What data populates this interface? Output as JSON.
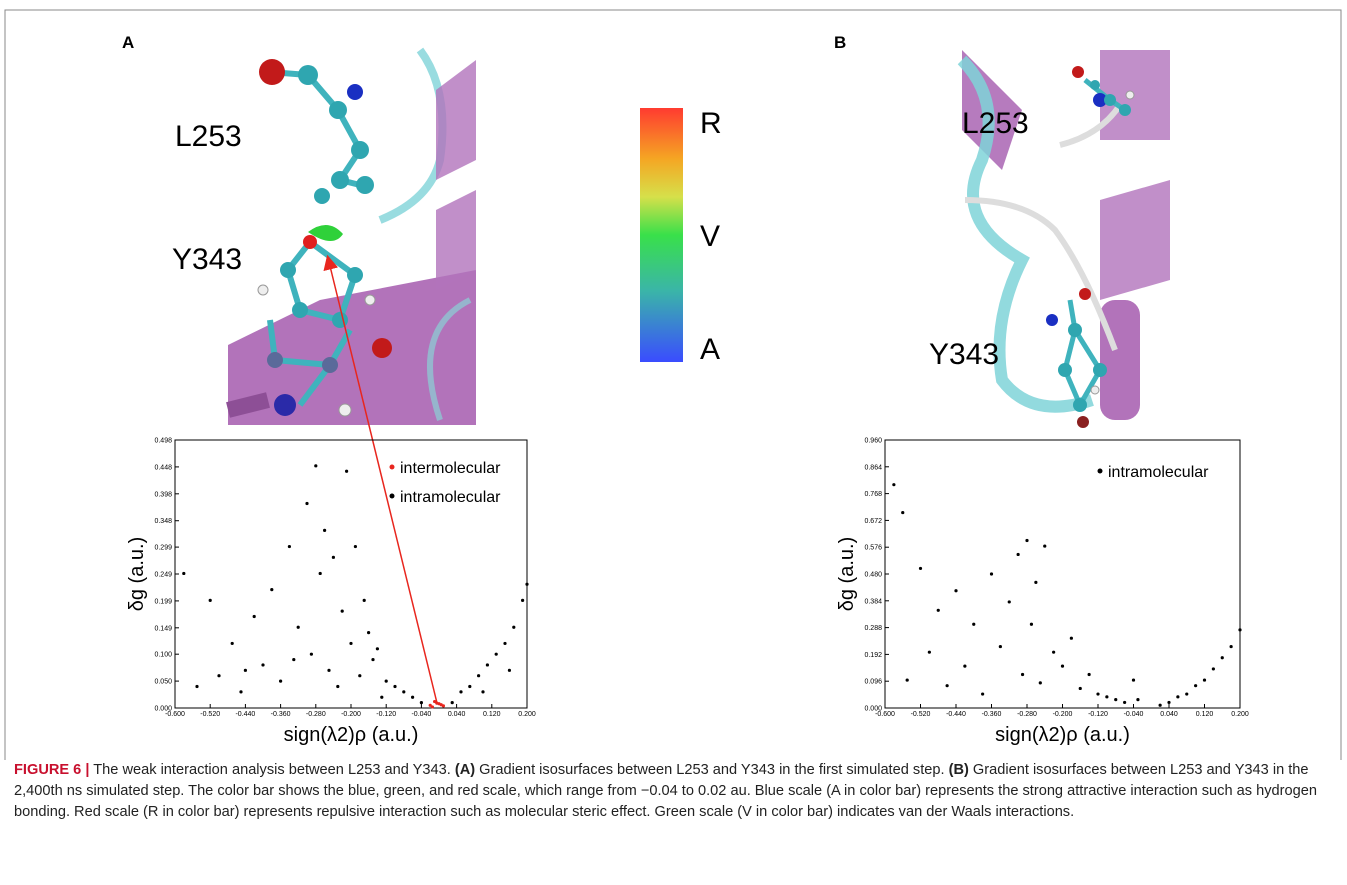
{
  "figure": {
    "panels": [
      {
        "label": "A",
        "residue_labels": [
          "L253",
          "Y343"
        ],
        "colorbar_labels": [
          "R",
          "V",
          "A"
        ]
      },
      {
        "label": "B",
        "residue_labels": [
          "L253",
          "Y343"
        ]
      }
    ],
    "caption": {
      "label": "FIGURE 6 |",
      "text_1": " The weak interaction analysis between L253 and Y343. ",
      "ref_a": "(A)",
      "text_2": " Gradient isosurfaces between L253 and Y343 in the first simulated step. ",
      "ref_b": "(B)",
      "text_3": " Gradient isosurfaces between L253 and Y343 in the 2,400th ns simulated step. The color bar shows the blue, green, and red scale, which range from −0.04 to 0.02 au. Blue scale (A in color bar) represents the strong attractive interaction such as hydrogen bonding. Red scale (R in color bar) represents repulsive interaction such as molecular steric effect. Green scale (V in color bar) indicates van der Waals interactions."
    }
  },
  "chart_data": [
    {
      "type": "scatter",
      "x_label": "sign(λ2)ρ (a.u.)",
      "y_label": "δg (a.u.)",
      "xlim": [
        -0.6,
        0.2
      ],
      "ylim": [
        0,
        0.498
      ],
      "xticks": [
        {
          "value": -0.6,
          "label": "-0.600"
        },
        {
          "value": -0.52,
          "label": "-0.520"
        },
        {
          "value": -0.44,
          "label": "-0.440"
        },
        {
          "value": -0.36,
          "label": "-0.360"
        },
        {
          "value": -0.28,
          "label": "-0.280"
        },
        {
          "value": -0.2,
          "label": "-0.200"
        },
        {
          "value": -0.12,
          "label": "-0.120"
        },
        {
          "value": -0.04,
          "label": "-0.040"
        },
        {
          "value": 0.04,
          "label": "0.040"
        },
        {
          "value": 0.12,
          "label": "0.120"
        },
        {
          "value": 0.2,
          "label": "0.200"
        }
      ],
      "yticks": [
        {
          "value": 0,
          "label": "0.000"
        },
        {
          "value": 0.05,
          "label": "0.050"
        },
        {
          "value": 0.1,
          "label": "0.100"
        },
        {
          "value": 0.149,
          "label": "0.149"
        },
        {
          "value": 0.199,
          "label": "0.199"
        },
        {
          "value": 0.249,
          "label": "0.249"
        },
        {
          "value": 0.299,
          "label": "0.299"
        },
        {
          "value": 0.348,
          "label": "0.348"
        },
        {
          "value": 0.398,
          "label": "0.398"
        },
        {
          "value": 0.448,
          "label": "0.448"
        },
        {
          "value": 0.498,
          "label": "0.498"
        }
      ],
      "series": [
        {
          "name": "intermolecular",
          "color": "#e8261e",
          "x": [
            -0.02,
            -0.015,
            -0.01,
            -0.005,
            0,
            0.005,
            0.01
          ],
          "values": [
            0.005,
            0.002,
            0.012,
            0.009,
            0.008,
            0.006,
            0.004
          ]
        },
        {
          "name": "intramolecular",
          "color": "#000000",
          "x": [
            -0.58,
            -0.55,
            -0.52,
            -0.5,
            -0.47,
            -0.45,
            -0.44,
            -0.42,
            -0.4,
            -0.38,
            -0.36,
            -0.34,
            -0.33,
            -0.32,
            -0.3,
            -0.29,
            -0.28,
            -0.27,
            -0.26,
            -0.25,
            -0.24,
            -0.23,
            -0.22,
            -0.21,
            -0.2,
            -0.19,
            -0.18,
            -0.17,
            -0.16,
            -0.15,
            -0.14,
            -0.13,
            -0.12,
            -0.1,
            -0.08,
            -0.06,
            -0.04,
            0.03,
            0.05,
            0.07,
            0.09,
            0.1,
            0.11,
            0.13,
            0.15,
            0.16,
            0.17,
            0.19,
            0.2
          ],
          "values": [
            0.25,
            0.04,
            0.2,
            0.06,
            0.12,
            0.03,
            0.07,
            0.17,
            0.08,
            0.22,
            0.05,
            0.3,
            0.09,
            0.15,
            0.38,
            0.1,
            0.45,
            0.25,
            0.33,
            0.07,
            0.28,
            0.04,
            0.18,
            0.44,
            0.12,
            0.3,
            0.06,
            0.2,
            0.14,
            0.09,
            0.11,
            0.02,
            0.05,
            0.04,
            0.03,
            0.02,
            0.01,
            0.01,
            0.03,
            0.04,
            0.06,
            0.03,
            0.08,
            0.1,
            0.12,
            0.07,
            0.15,
            0.2,
            0.23
          ]
        }
      ]
    },
    {
      "type": "scatter",
      "x_label": "sign(λ2)ρ (a.u.)",
      "y_label": "δg (a.u.)",
      "xlim": [
        -0.6,
        0.2
      ],
      "ylim": [
        0,
        0.96
      ],
      "xticks": [
        {
          "value": -0.6,
          "label": "-0.600"
        },
        {
          "value": -0.52,
          "label": "-0.520"
        },
        {
          "value": -0.44,
          "label": "-0.440"
        },
        {
          "value": -0.36,
          "label": "-0.360"
        },
        {
          "value": -0.28,
          "label": "-0.280"
        },
        {
          "value": -0.2,
          "label": "-0.200"
        },
        {
          "value": -0.12,
          "label": "-0.120"
        },
        {
          "value": -0.04,
          "label": "-0.040"
        },
        {
          "value": 0.04,
          "label": "0.040"
        },
        {
          "value": 0.12,
          "label": "0.120"
        },
        {
          "value": 0.2,
          "label": "0.200"
        }
      ],
      "yticks": [
        {
          "value": 0,
          "label": "0.000"
        },
        {
          "value": 0.096,
          "label": "0.096"
        },
        {
          "value": 0.192,
          "label": "0.192"
        },
        {
          "value": 0.288,
          "label": "0.288"
        },
        {
          "value": 0.384,
          "label": "0.384"
        },
        {
          "value": 0.48,
          "label": "0.480"
        },
        {
          "value": 0.576,
          "label": "0.576"
        },
        {
          "value": 0.672,
          "label": "0.672"
        },
        {
          "value": 0.768,
          "label": "0.768"
        },
        {
          "value": 0.864,
          "label": "0.864"
        },
        {
          "value": 0.96,
          "label": "0.960"
        }
      ],
      "series": [
        {
          "name": "intramolecular",
          "color": "#000000",
          "x": [
            -0.58,
            -0.56,
            -0.55,
            -0.52,
            -0.5,
            -0.48,
            -0.46,
            -0.44,
            -0.42,
            -0.4,
            -0.38,
            -0.36,
            -0.34,
            -0.32,
            -0.3,
            -0.29,
            -0.28,
            -0.27,
            -0.26,
            -0.25,
            -0.24,
            -0.22,
            -0.2,
            -0.18,
            -0.16,
            -0.14,
            -0.12,
            -0.1,
            -0.08,
            -0.06,
            -0.04,
            -0.03,
            0.02,
            0.04,
            0.06,
            0.08,
            0.1,
            0.12,
            0.14,
            0.16,
            0.18,
            0.2
          ],
          "values": [
            0.8,
            0.7,
            0.1,
            0.5,
            0.2,
            0.35,
            0.08,
            0.42,
            0.15,
            0.3,
            0.05,
            0.48,
            0.22,
            0.38,
            0.55,
            0.12,
            0.6,
            0.3,
            0.45,
            0.09,
            0.58,
            0.2,
            0.15,
            0.25,
            0.07,
            0.12,
            0.05,
            0.04,
            0.03,
            0.02,
            0.1,
            0.03,
            0.01,
            0.02,
            0.04,
            0.05,
            0.08,
            0.1,
            0.14,
            0.18,
            0.22,
            0.28
          ]
        }
      ]
    }
  ]
}
